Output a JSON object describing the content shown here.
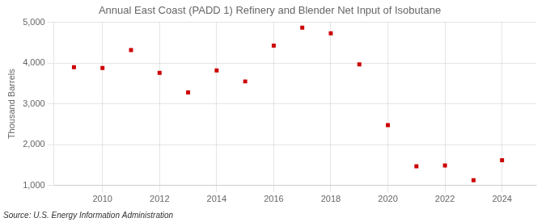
{
  "chart_data": {
    "type": "scatter",
    "title": "Annual East Coast (PADD 1) Refinery and Blender Net Input of Isobutane",
    "ylabel": "Thousand Barrels",
    "source": "Source: U.S. Energy Information Administration",
    "x": [
      2009,
      2010,
      2011,
      2012,
      2013,
      2014,
      2015,
      2016,
      2017,
      2018,
      2019,
      2020,
      2021,
      2022,
      2023,
      2024
    ],
    "values": [
      3900,
      3880,
      4320,
      3760,
      3280,
      3820,
      3550,
      4430,
      4870,
      4730,
      3970,
      2480,
      1470,
      1490,
      1130,
      1620
    ],
    "color": "#cc0000",
    "marker": "square",
    "xlim": [
      2008.3,
      2025.2
    ],
    "xticks": [
      2010,
      2012,
      2014,
      2016,
      2018,
      2020,
      2022,
      2024
    ],
    "ylim": [
      1000,
      5000
    ],
    "yticks": [
      {
        "value": 1000,
        "label": "1,000"
      },
      {
        "value": 2000,
        "label": "2,000"
      },
      {
        "value": 3000,
        "label": "3,000"
      },
      {
        "value": 4000,
        "label": "4,000"
      },
      {
        "value": 5000,
        "label": "5,000"
      }
    ],
    "grid": true
  }
}
